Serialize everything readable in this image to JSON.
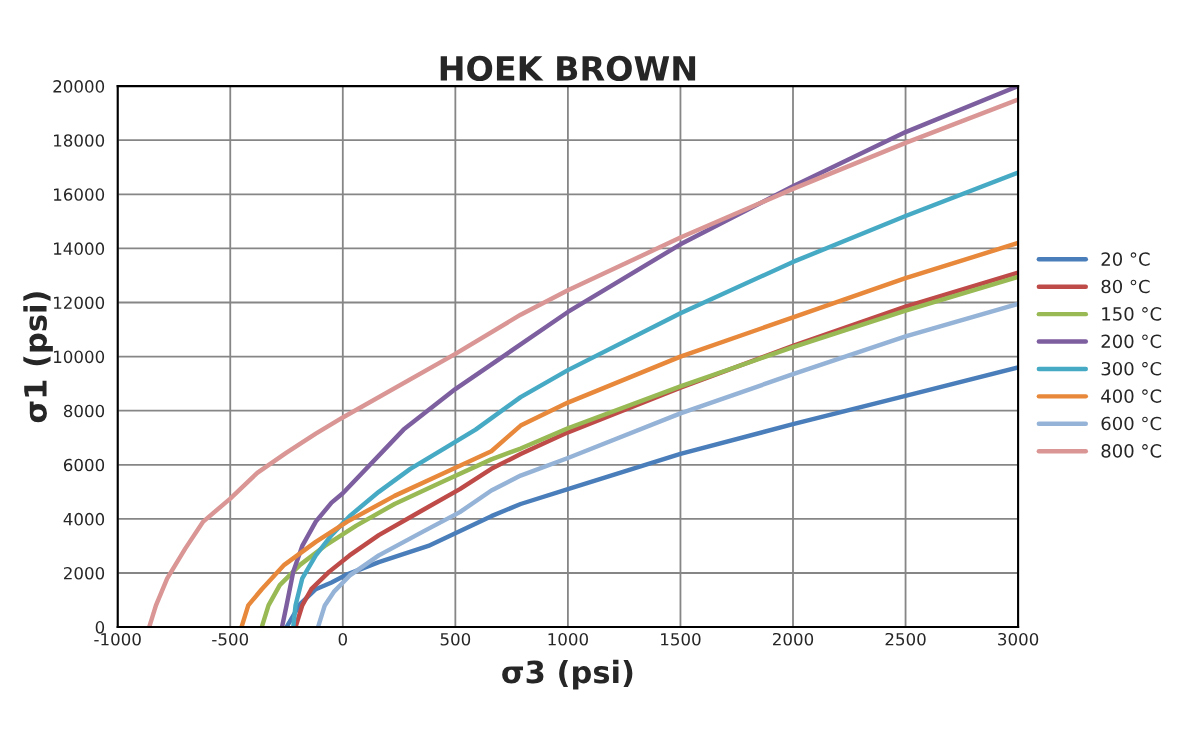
{
  "chart_data": {
    "type": "line",
    "title": "HOEK BROWN",
    "xlabel": "σ3 (psi)",
    "ylabel": "σ1 (psi)",
    "xlim": [
      -1000,
      3000
    ],
    "xticks": [
      -1000,
      -500,
      0,
      500,
      1000,
      1500,
      2000,
      2500,
      3000
    ],
    "ylim": [
      0,
      20000
    ],
    "yticks": [
      0,
      2000,
      4000,
      6000,
      8000,
      10000,
      12000,
      14000,
      16000,
      18000,
      20000
    ],
    "grid": true,
    "legend": "right",
    "marker": "none",
    "line_style": "solid",
    "series": [
      {
        "name": "20 °C",
        "color": "#4a7ebb",
        "x": [
          -250,
          -190,
          -120,
          -50,
          20,
          160,
          380,
          660,
          790,
          1000,
          1500,
          2000,
          2500,
          3000
        ],
        "values": [
          0,
          850,
          1400,
          1650,
          1950,
          2400,
          3000,
          4100,
          4550,
          5100,
          6400,
          7500,
          8550,
          9600
        ]
      },
      {
        "name": "80 °C",
        "color": "#be4b48",
        "x": [
          -210,
          -180,
          -140,
          -60,
          30,
          160,
          350,
          520,
          660,
          790,
          1000,
          1500,
          2000,
          2500,
          3000
        ],
        "values": [
          0,
          800,
          1400,
          2050,
          2650,
          3400,
          4300,
          5100,
          5850,
          6400,
          7200,
          8850,
          10400,
          11850,
          13100
        ]
      },
      {
        "name": "150 °C",
        "color": "#98b954",
        "x": [
          -360,
          -330,
          -280,
          -190,
          -80,
          60,
          230,
          450,
          660,
          790,
          1000,
          1500,
          2000,
          2500,
          3000
        ],
        "values": [
          0,
          800,
          1550,
          2300,
          3000,
          3750,
          4550,
          5400,
          6200,
          6600,
          7350,
          8900,
          10350,
          11700,
          12950
        ]
      },
      {
        "name": "200 °C",
        "color": "#7d5fa0",
        "x": [
          -270,
          -250,
          -220,
          -180,
          -120,
          -50,
          0,
          270,
          500,
          790,
          1000,
          1500,
          2000,
          2500,
          3000
        ],
        "values": [
          0,
          800,
          2050,
          3000,
          3900,
          4600,
          4950,
          7300,
          8800,
          10450,
          11650,
          14150,
          16300,
          18300,
          20000
        ]
      },
      {
        "name": "300 °C",
        "color": "#46aac5",
        "x": [
          -220,
          -210,
          -180,
          -120,
          -50,
          30,
          160,
          300,
          450,
          590,
          790,
          1000,
          1500,
          2000,
          2500,
          3000
        ],
        "values": [
          0,
          800,
          1800,
          2650,
          3400,
          4100,
          5000,
          5850,
          6600,
          7300,
          8500,
          9500,
          11600,
          13500,
          15200,
          16800
        ]
      },
      {
        "name": "400 °C",
        "color": "#e8883a",
        "x": [
          -450,
          -420,
          -360,
          -260,
          -120,
          20,
          230,
          450,
          660,
          790,
          1000,
          1500,
          2000,
          2500,
          3000
        ],
        "values": [
          0,
          800,
          1400,
          2300,
          3150,
          3900,
          4850,
          5700,
          6500,
          7450,
          8300,
          10000,
          11450,
          12900,
          14200
        ]
      },
      {
        "name": "600 °C",
        "color": "#95b3d7",
        "x": [
          -110,
          -80,
          -40,
          30,
          160,
          350,
          520,
          660,
          790,
          1000,
          1500,
          2000,
          2500,
          3000
        ],
        "values": [
          0,
          800,
          1300,
          1900,
          2650,
          3500,
          4250,
          5050,
          5600,
          6250,
          7900,
          9350,
          10750,
          11950
        ]
      },
      {
        "name": "800 °C",
        "color": "#d99694",
        "x": [
          -860,
          -830,
          -780,
          -700,
          -620,
          -500,
          -380,
          -250,
          -120,
          0,
          500,
          790,
          1000,
          1500,
          2000,
          2500,
          3000
        ],
        "values": [
          0,
          800,
          1800,
          2900,
          3900,
          4750,
          5700,
          6450,
          7150,
          7750,
          10100,
          11550,
          12450,
          14400,
          16200,
          17900,
          19500
        ]
      }
    ]
  }
}
